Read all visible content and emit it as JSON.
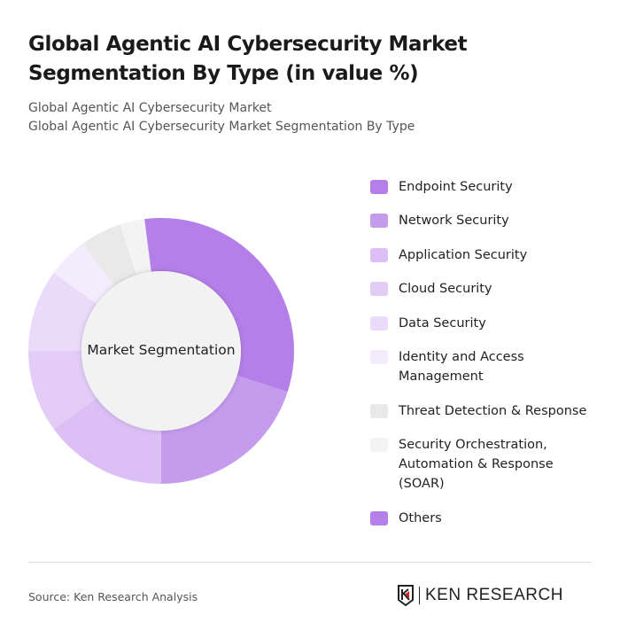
{
  "header": {
    "title": "Global Agentic AI Cybersecurity Market Segmentation By Type (in value %)",
    "subtitle1": "Global Agentic AI Cybersecurity Market",
    "subtitle2": "Global Agentic AI Cybersecurity Market Segmentation By Type"
  },
  "chart_data": {
    "type": "pie",
    "variant": "donut",
    "title": "Global Agentic AI Cybersecurity Market Segmentation By Type (in value %)",
    "center_label": "Market Segmentation",
    "legend_position": "right",
    "values_estimated": true,
    "categories": [
      "Endpoint Security",
      "Network Security",
      "Application Security",
      "Cloud Security",
      "Data Security",
      "Identity and Access Management",
      "Threat Detection & Response",
      "Security Orchestration, Automation & Response (SOAR)",
      "Others"
    ],
    "values": [
      30,
      20,
      15,
      10,
      10,
      5,
      5,
      3,
      2
    ],
    "colors": [
      "#b57fe9",
      "#c59bee",
      "#dbbff5",
      "#e3cdf7",
      "#ebdaf9",
      "#f3ecfc",
      "#e9e9e9",
      "#f3f3f3",
      "#b57fe9"
    ]
  },
  "footer": {
    "source": "Source: Ken Research Analysis",
    "logo_text": "KEN RESEARCH"
  }
}
